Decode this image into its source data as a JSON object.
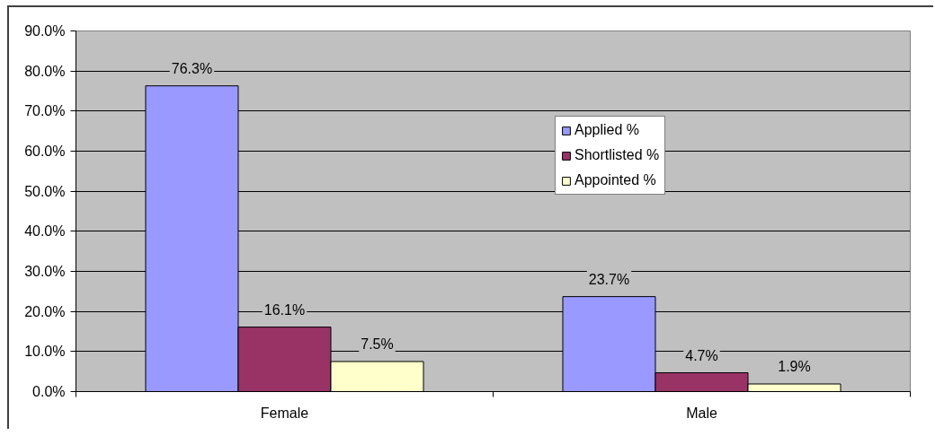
{
  "chart_data": {
    "type": "bar",
    "categories": [
      "Female",
      "Male"
    ],
    "series": [
      {
        "name": "Applied %",
        "color": "#9999ff",
        "values": [
          76.3,
          23.7
        ],
        "value_labels": [
          "76.3%",
          "23.7%"
        ]
      },
      {
        "name": "Shortlisted %",
        "color": "#993366",
        "values": [
          16.1,
          4.7
        ],
        "value_labels": [
          "16.1%",
          "4.7%"
        ]
      },
      {
        "name": "Appointed %",
        "color": "#ffffcc",
        "values": [
          7.5,
          1.9
        ],
        "value_labels": [
          "7.5%",
          "1.9%"
        ]
      }
    ],
    "ylim": [
      0,
      90
    ],
    "yticks": [
      {
        "value": 0,
        "label": "0.0%"
      },
      {
        "value": 10,
        "label": "10.0%"
      },
      {
        "value": 20,
        "label": "20.0%"
      },
      {
        "value": 30,
        "label": "30.0%"
      },
      {
        "value": 40,
        "label": "40.0%"
      },
      {
        "value": 50,
        "label": "50.0%"
      },
      {
        "value": 60,
        "label": "60.0%"
      },
      {
        "value": 70,
        "label": "70.0%"
      },
      {
        "value": 80,
        "label": "80.0%"
      },
      {
        "value": 90,
        "label": "90.0%"
      }
    ],
    "grid": "y",
    "legend": "right"
  }
}
